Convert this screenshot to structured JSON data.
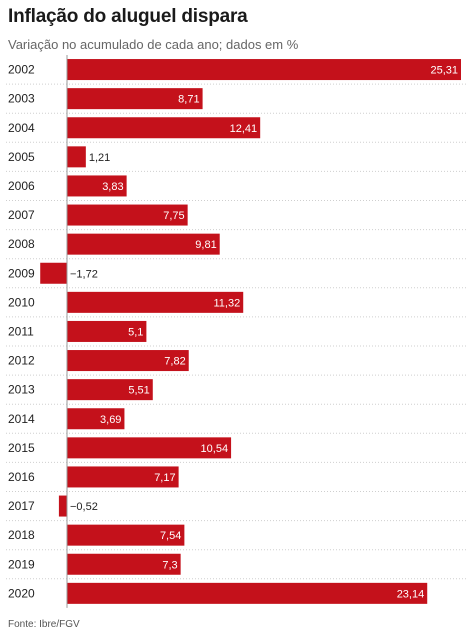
{
  "chart_data": {
    "type": "bar",
    "orientation": "horizontal",
    "title": "Inflação do aluguel dispara",
    "subtitle": "Variação no acumulado de cada ano; dados em %",
    "source": "Fonte: Ibre/FGV",
    "categories": [
      "2002",
      "2003",
      "2004",
      "2005",
      "2006",
      "2007",
      "2008",
      "2009",
      "2010",
      "2011",
      "2012",
      "2013",
      "2014",
      "2015",
      "2016",
      "2017",
      "2018",
      "2019",
      "2020"
    ],
    "values": [
      25.31,
      8.71,
      12.41,
      1.21,
      3.83,
      7.75,
      9.81,
      -1.72,
      11.32,
      5.1,
      7.82,
      5.51,
      3.69,
      10.54,
      7.17,
      -0.52,
      7.54,
      7.3,
      23.14
    ],
    "value_labels": [
      "25,31",
      "8,71",
      "12,41",
      "1,21",
      "3,83",
      "7,75",
      "9,81",
      "−1,72",
      "11,32",
      "5,1",
      "7,82",
      "5,51",
      "3,69",
      "10,54",
      "7,17",
      "−0,52",
      "7,54",
      "7,3",
      "23,14"
    ],
    "xlim": [
      -1.72,
      25.31
    ],
    "bar_color": "#c4111b",
    "grid": "dotted row separators",
    "legend": "none"
  }
}
